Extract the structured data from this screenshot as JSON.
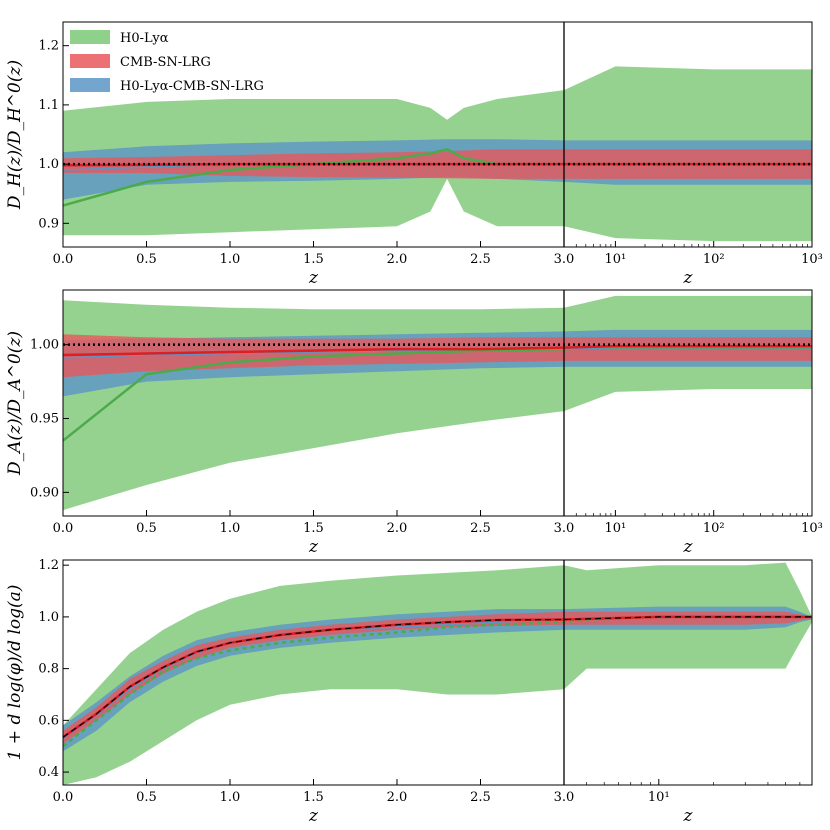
{
  "colors": {
    "green": "#8fd08a",
    "green_line": "#4bab4b",
    "red": "#e8585d",
    "red_line": "#dd1e22",
    "blue": "#5b95c6",
    "black": "#000000"
  },
  "legend": [
    {
      "label": "H0-Lyα",
      "color_key": "green"
    },
    {
      "label": "CMB-SN-LRG",
      "color_key": "red"
    },
    {
      "label": "H0-Lyα-CMB-SN-LRG",
      "color_key": "blue"
    }
  ],
  "chart_data": [
    {
      "type": "area",
      "panel": "top",
      "ylabel": "D_H(z)/D_H^0(z)",
      "xlabel": "z",
      "ylim": [
        0.86,
        1.24
      ],
      "yticks": [
        "0.9",
        "1.0",
        "1.1",
        "1.2"
      ],
      "ytick_values": [
        0.9,
        1.0,
        1.1,
        1.2
      ],
      "xlim_linear": [
        0,
        3
      ],
      "xticks_linear": [
        "0.0",
        "0.5",
        "1.0",
        "1.5",
        "2.0",
        "2.5",
        "3.0"
      ],
      "xlim_log": [
        3,
        1000
      ],
      "xticks_log": [
        "10¹",
        "10²",
        "10³"
      ],
      "xtick_log_values": [
        10,
        100,
        1000
      ],
      "series": [
        {
          "name": "H0-Lyα",
          "color_key": "green",
          "x": [
            0,
            0.5,
            1.0,
            1.5,
            2.0,
            2.2,
            2.3,
            2.4,
            2.6,
            3.0,
            10,
            100,
            1000
          ],
          "lo": [
            0.88,
            0.88,
            0.885,
            0.89,
            0.895,
            0.92,
            0.975,
            0.92,
            0.895,
            0.895,
            0.875,
            0.87,
            0.87
          ],
          "hi": [
            1.09,
            1.105,
            1.11,
            1.11,
            1.11,
            1.095,
            1.075,
            1.095,
            1.11,
            1.125,
            1.165,
            1.16,
            1.16
          ],
          "mid": [
            0.93,
            0.97,
            0.99,
            1.0,
            1.01,
            1.018,
            1.025,
            1.01,
            1.0,
            1.0,
            1.0,
            1.0,
            1.0
          ]
        },
        {
          "name": "H0-Lyα-CMB-SN-LRG",
          "color_key": "blue",
          "x": [
            0,
            0.5,
            1.0,
            1.5,
            2.0,
            2.3,
            2.6,
            3.0,
            10,
            100,
            1000
          ],
          "lo": [
            0.94,
            0.965,
            0.97,
            0.972,
            0.975,
            0.978,
            0.975,
            0.97,
            0.965,
            0.965,
            0.965
          ],
          "hi": [
            1.02,
            1.03,
            1.035,
            1.038,
            1.04,
            1.042,
            1.042,
            1.04,
            1.04,
            1.04,
            1.04
          ],
          "mid": [
            0.99,
            0.995,
            1.0,
            1.0,
            1.0,
            1.0,
            1.0,
            1.0,
            1.0,
            1.0,
            1.0
          ]
        },
        {
          "name": "CMB-SN-LRG",
          "color_key": "red",
          "x": [
            0,
            0.5,
            1.0,
            1.5,
            2.0,
            2.3,
            2.6,
            3.0,
            10,
            100,
            1000
          ],
          "lo": [
            0.985,
            0.985,
            0.98,
            0.978,
            0.977,
            0.976,
            0.975,
            0.975,
            0.975,
            0.975,
            0.975
          ],
          "hi": [
            1.01,
            1.012,
            1.015,
            1.018,
            1.02,
            1.022,
            1.025,
            1.025,
            1.025,
            1.025,
            1.025
          ],
          "mid": [
            0.998,
            0.999,
            1.0,
            1.0,
            1.0,
            1.0,
            1.0,
            1.0,
            1.0,
            1.0,
            1.0
          ]
        }
      ],
      "reference": 1.0
    },
    {
      "type": "area",
      "panel": "middle",
      "ylabel": "D_A(z)/D_A^0(z)",
      "xlabel": "z",
      "ylim": [
        0.884,
        1.037
      ],
      "yticks": [
        "0.90",
        "0.95",
        "1.00"
      ],
      "ytick_values": [
        0.9,
        0.95,
        1.0
      ],
      "xlim_linear": [
        0,
        3
      ],
      "xticks_linear": [
        "0.0",
        "0.5",
        "1.0",
        "1.5",
        "2.0",
        "2.5",
        "3.0"
      ],
      "xlim_log": [
        3,
        1000
      ],
      "xticks_log": [
        "10¹",
        "10²",
        "10³"
      ],
      "xtick_log_values": [
        10,
        100,
        1000
      ],
      "series": [
        {
          "name": "H0-Lyα",
          "color_key": "green",
          "x": [
            0,
            0.5,
            1.0,
            1.5,
            2.0,
            2.5,
            3.0,
            10,
            100,
            1000
          ],
          "lo": [
            0.888,
            0.905,
            0.92,
            0.93,
            0.94,
            0.948,
            0.955,
            0.968,
            0.97,
            0.97
          ],
          "hi": [
            1.03,
            1.027,
            1.025,
            1.024,
            1.024,
            1.024,
            1.025,
            1.033,
            1.033,
            1.033
          ],
          "mid": [
            0.935,
            0.98,
            0.988,
            0.992,
            0.994,
            0.996,
            0.997,
            0.998,
            0.998,
            0.998
          ]
        },
        {
          "name": "H0-Lyα-CMB-SN-LRG",
          "color_key": "blue",
          "x": [
            0,
            0.5,
            1.0,
            1.5,
            2.0,
            2.5,
            3.0,
            10,
            100,
            1000
          ],
          "lo": [
            0.965,
            0.975,
            0.978,
            0.98,
            0.982,
            0.984,
            0.985,
            0.985,
            0.985,
            0.985
          ],
          "hi": [
            1.003,
            1.004,
            1.005,
            1.006,
            1.007,
            1.008,
            1.009,
            1.01,
            1.01,
            1.01
          ],
          "mid": [
            0.991,
            0.993,
            0.994,
            0.995,
            0.996,
            0.997,
            0.997,
            0.998,
            0.998,
            0.998
          ]
        },
        {
          "name": "CMB-SN-LRG",
          "color_key": "red",
          "x": [
            0,
            0.5,
            1.0,
            1.5,
            2.0,
            2.5,
            3.0,
            10,
            100,
            1000
          ],
          "lo": [
            0.978,
            0.982,
            0.984,
            0.986,
            0.987,
            0.988,
            0.989,
            0.989,
            0.989,
            0.989
          ],
          "hi": [
            1.007,
            1.005,
            1.004,
            1.004,
            1.004,
            1.005,
            1.005,
            1.005,
            1.005,
            1.005
          ],
          "mid": [
            0.993,
            0.994,
            0.995,
            0.996,
            0.997,
            0.997,
            0.998,
            0.999,
            0.999,
            0.999
          ]
        }
      ],
      "reference": 1.0
    },
    {
      "type": "area",
      "panel": "bottom",
      "ylabel": "1 + d log(φ)/d log(a)",
      "xlabel": "z",
      "ylim": [
        0.35,
        1.22
      ],
      "yticks": [
        "0.4",
        "0.6",
        "0.8",
        "1.0",
        "1.2"
      ],
      "ytick_values": [
        0.4,
        0.6,
        0.8,
        1.0,
        1.2
      ],
      "xlim_linear": [
        0,
        3
      ],
      "xticks_linear": [
        "0.0",
        "0.5",
        "1.0",
        "1.5",
        "2.0",
        "2.5",
        "3.0"
      ],
      "xlim_log": [
        3,
        70
      ],
      "xticks_log": [
        "10¹"
      ],
      "xtick_log_values": [
        10
      ],
      "series": [
        {
          "name": "H0-Lyα",
          "color_key": "green",
          "x": [
            0,
            0.2,
            0.4,
            0.6,
            0.8,
            1.0,
            1.3,
            1.6,
            2.0,
            2.3,
            2.6,
            3.0,
            4,
            10,
            30,
            50,
            60,
            70
          ],
          "lo": [
            0.35,
            0.38,
            0.44,
            0.52,
            0.6,
            0.66,
            0.7,
            0.72,
            0.72,
            0.7,
            0.7,
            0.72,
            0.8,
            0.8,
            0.8,
            0.8,
            0.9,
            0.98
          ],
          "hi": [
            0.58,
            0.72,
            0.86,
            0.95,
            1.02,
            1.07,
            1.12,
            1.14,
            1.16,
            1.17,
            1.18,
            1.2,
            1.18,
            1.2,
            1.2,
            1.21,
            1.1,
            1.0
          ],
          "mid": [
            0.5,
            0.6,
            0.7,
            0.79,
            0.84,
            0.87,
            0.9,
            0.92,
            0.94,
            0.96,
            0.97,
            0.98,
            0.99,
            1.0,
            1.0,
            1.0,
            1.0,
            1.0
          ]
        },
        {
          "name": "H0-Lyα-CMB-SN-LRG",
          "color_key": "blue",
          "x": [
            0,
            0.2,
            0.4,
            0.6,
            0.8,
            1.0,
            1.3,
            1.6,
            2.0,
            2.3,
            2.6,
            3.0,
            10,
            30,
            50,
            60,
            70
          ],
          "lo": [
            0.48,
            0.56,
            0.67,
            0.75,
            0.81,
            0.85,
            0.88,
            0.9,
            0.92,
            0.93,
            0.94,
            0.95,
            0.95,
            0.95,
            0.96,
            0.98,
            0.99
          ],
          "hi": [
            0.58,
            0.67,
            0.77,
            0.85,
            0.91,
            0.94,
            0.97,
            0.99,
            1.01,
            1.02,
            1.03,
            1.03,
            1.04,
            1.04,
            1.04,
            1.02,
            1.0
          ],
          "mid": [
            0.53,
            0.62,
            0.72,
            0.8,
            0.86,
            0.9,
            0.93,
            0.95,
            0.96,
            0.97,
            0.98,
            0.99,
            1.0,
            1.0,
            1.0,
            1.0,
            1.0
          ]
        },
        {
          "name": "CMB-SN-LRG",
          "color_key": "red",
          "x": [
            0,
            0.2,
            0.4,
            0.6,
            0.8,
            1.0,
            1.3,
            1.6,
            2.0,
            2.3,
            2.6,
            3.0,
            10,
            30,
            50,
            60,
            70
          ],
          "lo": [
            0.51,
            0.6,
            0.7,
            0.78,
            0.84,
            0.88,
            0.91,
            0.93,
            0.95,
            0.96,
            0.965,
            0.97,
            0.97,
            0.97,
            0.975,
            0.985,
            0.995
          ],
          "hi": [
            0.56,
            0.65,
            0.76,
            0.83,
            0.89,
            0.92,
            0.95,
            0.97,
            0.99,
            1.0,
            1.01,
            1.02,
            1.02,
            1.02,
            1.02,
            1.01,
            1.0
          ],
          "mid": [
            0.535,
            0.625,
            0.73,
            0.805,
            0.865,
            0.9,
            0.93,
            0.95,
            0.97,
            0.98,
            0.988,
            0.99,
            1.0,
            1.0,
            1.0,
            1.0,
            1.0
          ]
        }
      ],
      "reference_curve": {
        "x": [
          0,
          0.2,
          0.4,
          0.6,
          0.8,
          1.0,
          1.3,
          1.6,
          2.0,
          2.3,
          2.6,
          3.0,
          10,
          70
        ],
        "y": [
          0.535,
          0.625,
          0.73,
          0.805,
          0.865,
          0.9,
          0.93,
          0.95,
          0.97,
          0.98,
          0.988,
          0.99,
          1.0,
          1.0
        ]
      }
    }
  ]
}
